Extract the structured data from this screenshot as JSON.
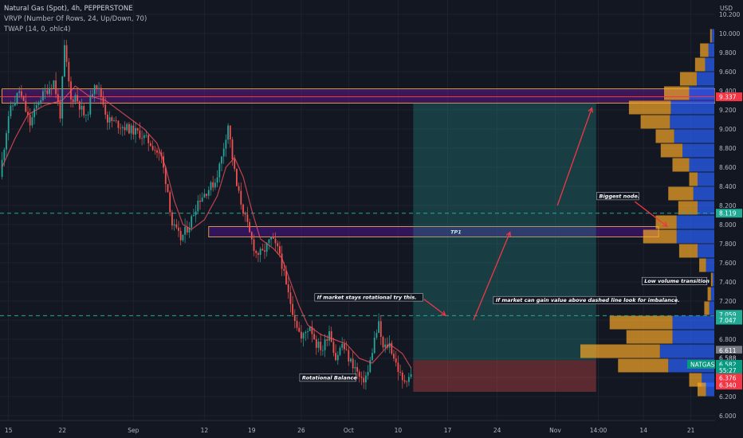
{
  "header": {
    "title": "Natural Gas (Spot), 4h, PEPPERSTONE",
    "indicator_1": "VRVP (Number Of Rows, 24, Up/Down, 70)",
    "indicator_2": "TWAP (14, 0, ohlc4)"
  },
  "chart_data": {
    "type": "candlestick",
    "symbol": "NATGAS",
    "currency": "USD",
    "y_ticks": [
      6.0,
      6.2,
      6.4,
      6.6,
      6.8,
      7.0,
      7.2,
      7.4,
      7.6,
      7.8,
      8.0,
      8.2,
      8.4,
      8.6,
      8.8,
      9.0,
      9.2,
      9.4,
      9.6,
      9.8,
      10.0,
      10.2
    ],
    "ylim": [
      5.95,
      10.35
    ],
    "x_labels": [
      {
        "label": "15",
        "i": 3
      },
      {
        "label": "22",
        "i": 28
      },
      {
        "label": "Sep",
        "i": 61
      },
      {
        "label": "12",
        "i": 94
      },
      {
        "label": "19",
        "i": 116
      },
      {
        "label": "26",
        "i": 139
      },
      {
        "label": "Oct",
        "i": 161
      },
      {
        "label": "10",
        "i": 184
      },
      {
        "label": "17",
        "i": 207
      },
      {
        "label": "24",
        "i": 230
      },
      {
        "label": "Nov",
        "i": 257
      },
      {
        "label": "14:00",
        "i": 277
      },
      {
        "label": "14",
        "i": 298
      },
      {
        "label": "21",
        "i": 320
      }
    ],
    "price_path": [
      [
        0,
        8.5
      ],
      [
        4,
        9.15
      ],
      [
        9,
        9.4
      ],
      [
        14,
        9.05
      ],
      [
        18,
        9.3
      ],
      [
        25,
        9.5
      ],
      [
        28,
        9.15
      ],
      [
        30,
        9.85
      ],
      [
        33,
        9.3
      ],
      [
        35,
        9.35
      ],
      [
        40,
        9.1
      ],
      [
        44,
        9.5
      ],
      [
        47,
        9.35
      ],
      [
        50,
        9.1
      ],
      [
        55,
        9.05
      ],
      [
        60,
        9.0
      ],
      [
        65,
        8.95
      ],
      [
        70,
        8.85
      ],
      [
        75,
        8.7
      ],
      [
        78,
        8.35
      ],
      [
        80,
        8.0
      ],
      [
        84,
        7.85
      ],
      [
        88,
        8.0
      ],
      [
        92,
        8.25
      ],
      [
        96,
        8.35
      ],
      [
        100,
        8.45
      ],
      [
        103,
        8.7
      ],
      [
        106,
        9.05
      ],
      [
        108,
        8.7
      ],
      [
        110,
        8.4
      ],
      [
        113,
        8.15
      ],
      [
        116,
        7.9
      ],
      [
        119,
        7.7
      ],
      [
        122,
        7.7
      ],
      [
        126,
        7.85
      ],
      [
        130,
        7.7
      ],
      [
        133,
        7.35
      ],
      [
        136,
        7.1
      ],
      [
        140,
        6.8
      ],
      [
        144,
        6.95
      ],
      [
        147,
        6.75
      ],
      [
        150,
        6.7
      ],
      [
        153,
        6.9
      ],
      [
        156,
        6.6
      ],
      [
        159,
        6.75
      ],
      [
        162,
        6.6
      ],
      [
        165,
        6.5
      ],
      [
        168,
        6.35
      ],
      [
        171,
        6.45
      ],
      [
        174,
        6.8
      ],
      [
        176,
        6.95
      ],
      [
        178,
        6.7
      ],
      [
        181,
        6.75
      ],
      [
        184,
        6.55
      ],
      [
        187,
        6.35
      ],
      [
        190,
        6.42
      ]
    ],
    "twap_path": [
      [
        0,
        8.6
      ],
      [
        6,
        8.9
      ],
      [
        12,
        9.15
      ],
      [
        20,
        9.25
      ],
      [
        28,
        9.3
      ],
      [
        34,
        9.45
      ],
      [
        40,
        9.35
      ],
      [
        48,
        9.3
      ],
      [
        54,
        9.2
      ],
      [
        60,
        9.1
      ],
      [
        66,
        9.0
      ],
      [
        72,
        8.85
      ],
      [
        76,
        8.6
      ],
      [
        80,
        8.25
      ],
      [
        84,
        8.0
      ],
      [
        88,
        7.95
      ],
      [
        94,
        8.05
      ],
      [
        100,
        8.3
      ],
      [
        104,
        8.6
      ],
      [
        108,
        8.7
      ],
      [
        112,
        8.5
      ],
      [
        116,
        8.15
      ],
      [
        120,
        7.85
      ],
      [
        126,
        7.75
      ],
      [
        130,
        7.65
      ],
      [
        134,
        7.4
      ],
      [
        138,
        7.15
      ],
      [
        142,
        6.95
      ],
      [
        148,
        6.85
      ],
      [
        154,
        6.8
      ],
      [
        160,
        6.75
      ],
      [
        166,
        6.6
      ],
      [
        172,
        6.55
      ],
      [
        176,
        6.65
      ],
      [
        180,
        6.75
      ],
      [
        186,
        6.65
      ],
      [
        190,
        6.5
      ]
    ],
    "horizontal_lines": [
      {
        "price": 9.337,
        "color": "#f23645",
        "style": "solid",
        "label": "9.337"
      },
      {
        "price": 8.119,
        "color": "#22ab94",
        "style": "dashed",
        "label": "8.119"
      },
      {
        "price": 7.047,
        "color": "#22ab94",
        "style": "dashed",
        "label": "7.047"
      }
    ],
    "zones": [
      {
        "name": "supply-zone",
        "from_i": 0,
        "to_i": 333,
        "low": 9.27,
        "high": 9.42,
        "color": "#8e24aa"
      },
      {
        "name": "tp1-zone",
        "from_i": 96,
        "to_i": 305,
        "low": 7.87,
        "high": 7.98,
        "color": "#673ab7",
        "label": "TP1"
      },
      {
        "name": "position-profit",
        "from_i": 191,
        "to_i": 276,
        "low": 6.58,
        "high": 9.27,
        "color": "#26a69a"
      },
      {
        "name": "position-loss",
        "from_i": 191,
        "to_i": 276,
        "low": 6.25,
        "high": 6.58,
        "color": "#b71c1c"
      }
    ],
    "annotations": [
      {
        "text": "Biggest node.",
        "i": 277,
        "price": 8.28
      },
      {
        "text": "Low volume transition",
        "i": 298,
        "price": 7.39
      },
      {
        "text": "If market can gain value above dashed line look for imbalance.",
        "i": 229,
        "price": 7.19
      },
      {
        "text": "If market stays rotational try this.",
        "i": 146,
        "price": 7.22
      },
      {
        "text": "Rotational Balance",
        "i": 139,
        "price": 6.38
      }
    ],
    "volume_profile": [
      {
        "price": 9.975,
        "up": 2,
        "down": 3
      },
      {
        "price": 9.825,
        "up": 10,
        "down": 7
      },
      {
        "price": 9.675,
        "up": 12,
        "down": 11
      },
      {
        "price": 9.525,
        "up": 20,
        "down": 21
      },
      {
        "price": 9.375,
        "up": 30,
        "down": 30
      },
      {
        "price": 9.225,
        "up": 50,
        "down": 52
      },
      {
        "price": 9.075,
        "up": 35,
        "down": 53
      },
      {
        "price": 8.925,
        "up": 22,
        "down": 48
      },
      {
        "price": 8.775,
        "up": 26,
        "down": 38
      },
      {
        "price": 8.625,
        "up": 20,
        "down": 30
      },
      {
        "price": 8.475,
        "up": 10,
        "down": 20
      },
      {
        "price": 8.325,
        "up": 30,
        "down": 25
      },
      {
        "price": 8.175,
        "up": 23,
        "down": 20
      },
      {
        "price": 8.025,
        "up": 25,
        "down": 45
      },
      {
        "price": 7.875,
        "up": 40,
        "down": 45
      },
      {
        "price": 7.725,
        "up": 22,
        "down": 20
      },
      {
        "price": 7.575,
        "up": 8,
        "down": 10
      },
      {
        "price": 7.425,
        "up": 2,
        "down": 2
      },
      {
        "price": 7.275,
        "up": 4,
        "down": 4
      },
      {
        "price": 7.125,
        "up": 6,
        "down": 6
      },
      {
        "price": 6.975,
        "up": 75,
        "down": 50
      },
      {
        "price": 6.825,
        "up": 55,
        "down": 50
      },
      {
        "price": 6.675,
        "up": 95,
        "down": 65
      },
      {
        "price": 6.525,
        "up": 60,
        "down": 55
      },
      {
        "price": 6.375,
        "up": 15,
        "down": 15
      },
      {
        "price": 6.275,
        "up": 10,
        "down": 10
      }
    ],
    "price_labels": [
      {
        "text": "9.337",
        "price": 9.337,
        "bg": "#f23645",
        "fg": "#ffffff"
      },
      {
        "text": "8.119",
        "price": 8.119,
        "bg": "#22ab94",
        "fg": "#ffffff"
      },
      {
        "text": "7.059",
        "price": 7.06,
        "bg": "#22ab94",
        "fg": "#ffffff"
      },
      {
        "text": "7.047",
        "price": 7.0,
        "bg": "#22ab94",
        "fg": "#ffffff"
      },
      {
        "text": "6.611",
        "price": 6.685,
        "bg": "#787b86",
        "fg": "#ffffff"
      },
      {
        "text": "6.588",
        "price": 6.605,
        "bg": "#131722",
        "fg": "#d1d4dc"
      },
      {
        "text": "6.582",
        "price": 6.538,
        "bg": "#089981",
        "fg": "#ffffff"
      },
      {
        "text": "55:27",
        "price": 6.475,
        "bg": "#089981",
        "fg": "#ffffff"
      },
      {
        "text": "6.376",
        "price": 6.395,
        "bg": "#f23645",
        "fg": "#ffffff"
      },
      {
        "text": "6.340",
        "price": 6.32,
        "bg": "#f23645",
        "fg": "#ffffff"
      }
    ],
    "symbol_tag": {
      "text": "NATGAS",
      "price": 6.538
    }
  }
}
